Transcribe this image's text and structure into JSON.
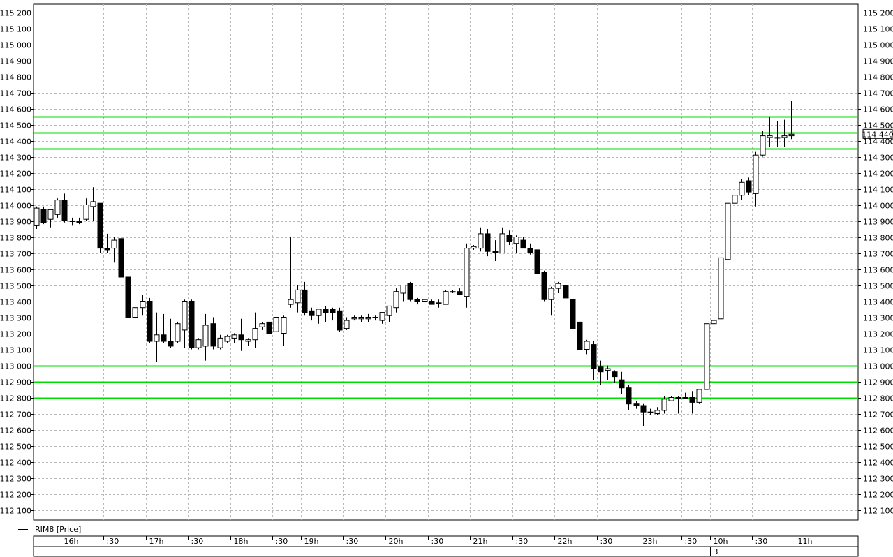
{
  "chart_data": {
    "type": "candlestick",
    "title": "",
    "series_label": "RIM8 [Price]",
    "ylim": [
      112050,
      115250
    ],
    "y_ticks": [
      112100,
      112200,
      112300,
      112400,
      112500,
      112600,
      112700,
      112800,
      112900,
      113000,
      113100,
      113200,
      113300,
      113400,
      113500,
      113600,
      113700,
      113800,
      113900,
      114000,
      114100,
      114200,
      114300,
      114400,
      114500,
      114600,
      114700,
      114800,
      114900,
      115000,
      115100,
      115200
    ],
    "y_tick_labels": [
      "112 100",
      "112 200",
      "112 300",
      "112 400",
      "112 500",
      "112 600",
      "112 700",
      "112 800",
      "112 900",
      "113 000",
      "113 100",
      "113 200",
      "113 300",
      "113 400",
      "113 500",
      "113 600",
      "113 700",
      "113 800",
      "113 900",
      "114 000",
      "114 100",
      "114 200",
      "114 300",
      "114 400",
      "114 500",
      "114 600",
      "114 700",
      "114 800",
      "114 900",
      "115 000",
      "115 100",
      "115 200"
    ],
    "last_price": 114440,
    "last_price_label": "114 440",
    "horizontal_levels": [
      114550,
      114450,
      114350,
      113000,
      112900,
      112800
    ],
    "level_color": "#00dd00",
    "grid": true,
    "x_tick_labels": [
      "16h",
      ":30",
      "17h",
      ":30",
      "18h",
      ":30",
      "19h",
      ":30",
      "20h",
      ":30",
      "21h",
      ":30",
      "22h",
      ":30",
      "23h",
      ":30",
      "10h",
      ":30",
      "11h"
    ],
    "x_tick_candle_index": [
      3,
      9,
      15,
      21,
      27,
      33,
      37,
      43,
      49,
      55,
      61,
      67,
      73,
      79,
      85,
      91,
      95,
      101,
      107
    ],
    "day_marker": "3",
    "day_marker_index": 95,
    "candles": [
      {
        "o": 113870,
        "h": 113990,
        "l": 113850,
        "c": 113980
      },
      {
        "o": 113970,
        "h": 113990,
        "l": 113880,
        "c": 113890
      },
      {
        "o": 113910,
        "h": 113970,
        "l": 113860,
        "c": 113970
      },
      {
        "o": 113940,
        "h": 114040,
        "l": 113920,
        "c": 114030
      },
      {
        "o": 114030,
        "h": 114070,
        "l": 113890,
        "c": 113900
      },
      {
        "o": 113900,
        "h": 113920,
        "l": 113870,
        "c": 113900
      },
      {
        "o": 113900,
        "h": 113920,
        "l": 113880,
        "c": 113890
      },
      {
        "o": 113910,
        "h": 114040,
        "l": 113900,
        "c": 114000
      },
      {
        "o": 113990,
        "h": 114110,
        "l": 113900,
        "c": 114020
      },
      {
        "o": 114010,
        "h": 114010,
        "l": 113700,
        "c": 113730
      },
      {
        "o": 113730,
        "h": 113820,
        "l": 113700,
        "c": 113720
      },
      {
        "o": 113730,
        "h": 113800,
        "l": 113640,
        "c": 113780
      },
      {
        "o": 113790,
        "h": 113800,
        "l": 113530,
        "c": 113550
      },
      {
        "o": 113550,
        "h": 113570,
        "l": 113210,
        "c": 113300
      },
      {
        "o": 113300,
        "h": 113420,
        "l": 113240,
        "c": 113360
      },
      {
        "o": 113360,
        "h": 113440,
        "l": 113310,
        "c": 113400
      },
      {
        "o": 113400,
        "h": 113420,
        "l": 113140,
        "c": 113150
      },
      {
        "o": 113150,
        "h": 113330,
        "l": 113020,
        "c": 113190
      },
      {
        "o": 113190,
        "h": 113320,
        "l": 113140,
        "c": 113150
      },
      {
        "o": 113150,
        "h": 113290,
        "l": 113110,
        "c": 113120
      },
      {
        "o": 113150,
        "h": 113270,
        "l": 113140,
        "c": 113260
      },
      {
        "o": 113220,
        "h": 113410,
        "l": 113110,
        "c": 113400
      },
      {
        "o": 113400,
        "h": 113410,
        "l": 113100,
        "c": 113110
      },
      {
        "o": 113110,
        "h": 113170,
        "l": 113100,
        "c": 113160
      },
      {
        "o": 113120,
        "h": 113320,
        "l": 113030,
        "c": 113250
      },
      {
        "o": 113260,
        "h": 113300,
        "l": 113100,
        "c": 113120
      },
      {
        "o": 113110,
        "h": 113190,
        "l": 113100,
        "c": 113170
      },
      {
        "o": 113150,
        "h": 113190,
        "l": 113140,
        "c": 113180
      },
      {
        "o": 113170,
        "h": 113200,
        "l": 113140,
        "c": 113190
      },
      {
        "o": 113190,
        "h": 113290,
        "l": 113090,
        "c": 113160
      },
      {
        "o": 113150,
        "h": 113170,
        "l": 113120,
        "c": 113160
      },
      {
        "o": 113160,
        "h": 113330,
        "l": 113110,
        "c": 113230
      },
      {
        "o": 113240,
        "h": 113270,
        "l": 113220,
        "c": 113260
      },
      {
        "o": 113270,
        "h": 113270,
        "l": 113200,
        "c": 113200
      },
      {
        "o": 113210,
        "h": 113330,
        "l": 113130,
        "c": 113300
      },
      {
        "o": 113200,
        "h": 113310,
        "l": 113120,
        "c": 113300
      },
      {
        "o": 113380,
        "h": 113800,
        "l": 113360,
        "c": 113410
      },
      {
        "o": 113390,
        "h": 113500,
        "l": 113330,
        "c": 113470
      },
      {
        "o": 113470,
        "h": 113520,
        "l": 113310,
        "c": 113330
      },
      {
        "o": 113340,
        "h": 113360,
        "l": 113280,
        "c": 113310
      },
      {
        "o": 113310,
        "h": 113350,
        "l": 113260,
        "c": 113350
      },
      {
        "o": 113350,
        "h": 113370,
        "l": 113270,
        "c": 113330
      },
      {
        "o": 113350,
        "h": 113360,
        "l": 113280,
        "c": 113330
      },
      {
        "o": 113340,
        "h": 113360,
        "l": 113210,
        "c": 113220
      },
      {
        "o": 113230,
        "h": 113300,
        "l": 113220,
        "c": 113280
      },
      {
        "o": 113290,
        "h": 113310,
        "l": 113280,
        "c": 113300
      },
      {
        "o": 113290,
        "h": 113310,
        "l": 113270,
        "c": 113300
      },
      {
        "o": 113290,
        "h": 113320,
        "l": 113270,
        "c": 113300
      },
      {
        "o": 113300,
        "h": 113310,
        "l": 113280,
        "c": 113300
      },
      {
        "o": 113280,
        "h": 113320,
        "l": 113260,
        "c": 113330
      },
      {
        "o": 113310,
        "h": 113370,
        "l": 113270,
        "c": 113370
      },
      {
        "o": 113360,
        "h": 113480,
        "l": 113330,
        "c": 113460
      },
      {
        "o": 113450,
        "h": 113500,
        "l": 113400,
        "c": 113500
      },
      {
        "o": 113510,
        "h": 113520,
        "l": 113400,
        "c": 113410
      },
      {
        "o": 113410,
        "h": 113420,
        "l": 113380,
        "c": 113400
      },
      {
        "o": 113400,
        "h": 113420,
        "l": 113390,
        "c": 113410
      },
      {
        "o": 113400,
        "h": 113410,
        "l": 113380,
        "c": 113380
      },
      {
        "o": 113390,
        "h": 113410,
        "l": 113360,
        "c": 113390
      },
      {
        "o": 113380,
        "h": 113470,
        "l": 113380,
        "c": 113460
      },
      {
        "o": 113460,
        "h": 113470,
        "l": 113450,
        "c": 113460
      },
      {
        "o": 113460,
        "h": 113480,
        "l": 113440,
        "c": 113440
      },
      {
        "o": 113430,
        "h": 113760,
        "l": 113360,
        "c": 113730
      },
      {
        "o": 113730,
        "h": 113750,
        "l": 113720,
        "c": 113740
      },
      {
        "o": 113730,
        "h": 113860,
        "l": 113710,
        "c": 113820
      },
      {
        "o": 113820,
        "h": 113850,
        "l": 113680,
        "c": 113710
      },
      {
        "o": 113710,
        "h": 113780,
        "l": 113650,
        "c": 113700
      },
      {
        "o": 113700,
        "h": 113860,
        "l": 113700,
        "c": 113820
      },
      {
        "o": 113810,
        "h": 113840,
        "l": 113750,
        "c": 113770
      },
      {
        "o": 113760,
        "h": 113810,
        "l": 113700,
        "c": 113800
      },
      {
        "o": 113780,
        "h": 113800,
        "l": 113730,
        "c": 113730
      },
      {
        "o": 113730,
        "h": 113760,
        "l": 113690,
        "c": 113700
      },
      {
        "o": 113720,
        "h": 113720,
        "l": 113570,
        "c": 113570
      },
      {
        "o": 113580,
        "h": 113590,
        "l": 113400,
        "c": 113410
      },
      {
        "o": 113410,
        "h": 113490,
        "l": 113310,
        "c": 113480
      },
      {
        "o": 113480,
        "h": 113520,
        "l": 113450,
        "c": 113510
      },
      {
        "o": 113500,
        "h": 113510,
        "l": 113410,
        "c": 113420
      },
      {
        "o": 113410,
        "h": 113420,
        "l": 113220,
        "c": 113230
      },
      {
        "o": 113270,
        "h": 113270,
        "l": 113100,
        "c": 113100
      },
      {
        "o": 113100,
        "h": 113160,
        "l": 113070,
        "c": 113150
      },
      {
        "o": 113130,
        "h": 113150,
        "l": 112910,
        "c": 112980
      },
      {
        "o": 112990,
        "h": 113030,
        "l": 112880,
        "c": 112960
      },
      {
        "o": 112970,
        "h": 113000,
        "l": 112910,
        "c": 112980
      },
      {
        "o": 112960,
        "h": 112970,
        "l": 112890,
        "c": 112930
      },
      {
        "o": 112910,
        "h": 112960,
        "l": 112820,
        "c": 112860
      },
      {
        "o": 112860,
        "h": 112880,
        "l": 112720,
        "c": 112760
      },
      {
        "o": 112760,
        "h": 112780,
        "l": 112730,
        "c": 112750
      },
      {
        "o": 112750,
        "h": 112760,
        "l": 112620,
        "c": 112710
      },
      {
        "o": 112710,
        "h": 112730,
        "l": 112690,
        "c": 112710
      },
      {
        "o": 112700,
        "h": 112740,
        "l": 112690,
        "c": 112720
      },
      {
        "o": 112720,
        "h": 112810,
        "l": 112700,
        "c": 112790
      },
      {
        "o": 112780,
        "h": 112810,
        "l": 112780,
        "c": 112800
      },
      {
        "o": 112800,
        "h": 112810,
        "l": 112700,
        "c": 112800
      },
      {
        "o": 112800,
        "h": 112830,
        "l": 112790,
        "c": 112800
      },
      {
        "o": 112800,
        "h": 112840,
        "l": 112700,
        "c": 112770
      },
      {
        "o": 112770,
        "h": 112850,
        "l": 112760,
        "c": 112850
      },
      {
        "o": 112850,
        "h": 113450,
        "l": 112840,
        "c": 113260
      },
      {
        "o": 113260,
        "h": 113410,
        "l": 113140,
        "c": 113280
      },
      {
        "o": 113290,
        "h": 113680,
        "l": 113280,
        "c": 113670
      },
      {
        "o": 113660,
        "h": 114070,
        "l": 113650,
        "c": 114010
      },
      {
        "o": 114010,
        "h": 114090,
        "l": 113990,
        "c": 114060
      },
      {
        "o": 114060,
        "h": 114160,
        "l": 114030,
        "c": 114140
      },
      {
        "o": 114150,
        "h": 114170,
        "l": 114060,
        "c": 114080
      },
      {
        "o": 114070,
        "h": 114330,
        "l": 113990,
        "c": 114310
      },
      {
        "o": 114310,
        "h": 114460,
        "l": 114300,
        "c": 114430
      },
      {
        "o": 114420,
        "h": 114550,
        "l": 114360,
        "c": 114430
      },
      {
        "o": 114420,
        "h": 114520,
        "l": 114360,
        "c": 114420
      },
      {
        "o": 114420,
        "h": 114530,
        "l": 114360,
        "c": 114430
      },
      {
        "o": 114430,
        "h": 114650,
        "l": 114410,
        "c": 114440
      }
    ]
  }
}
